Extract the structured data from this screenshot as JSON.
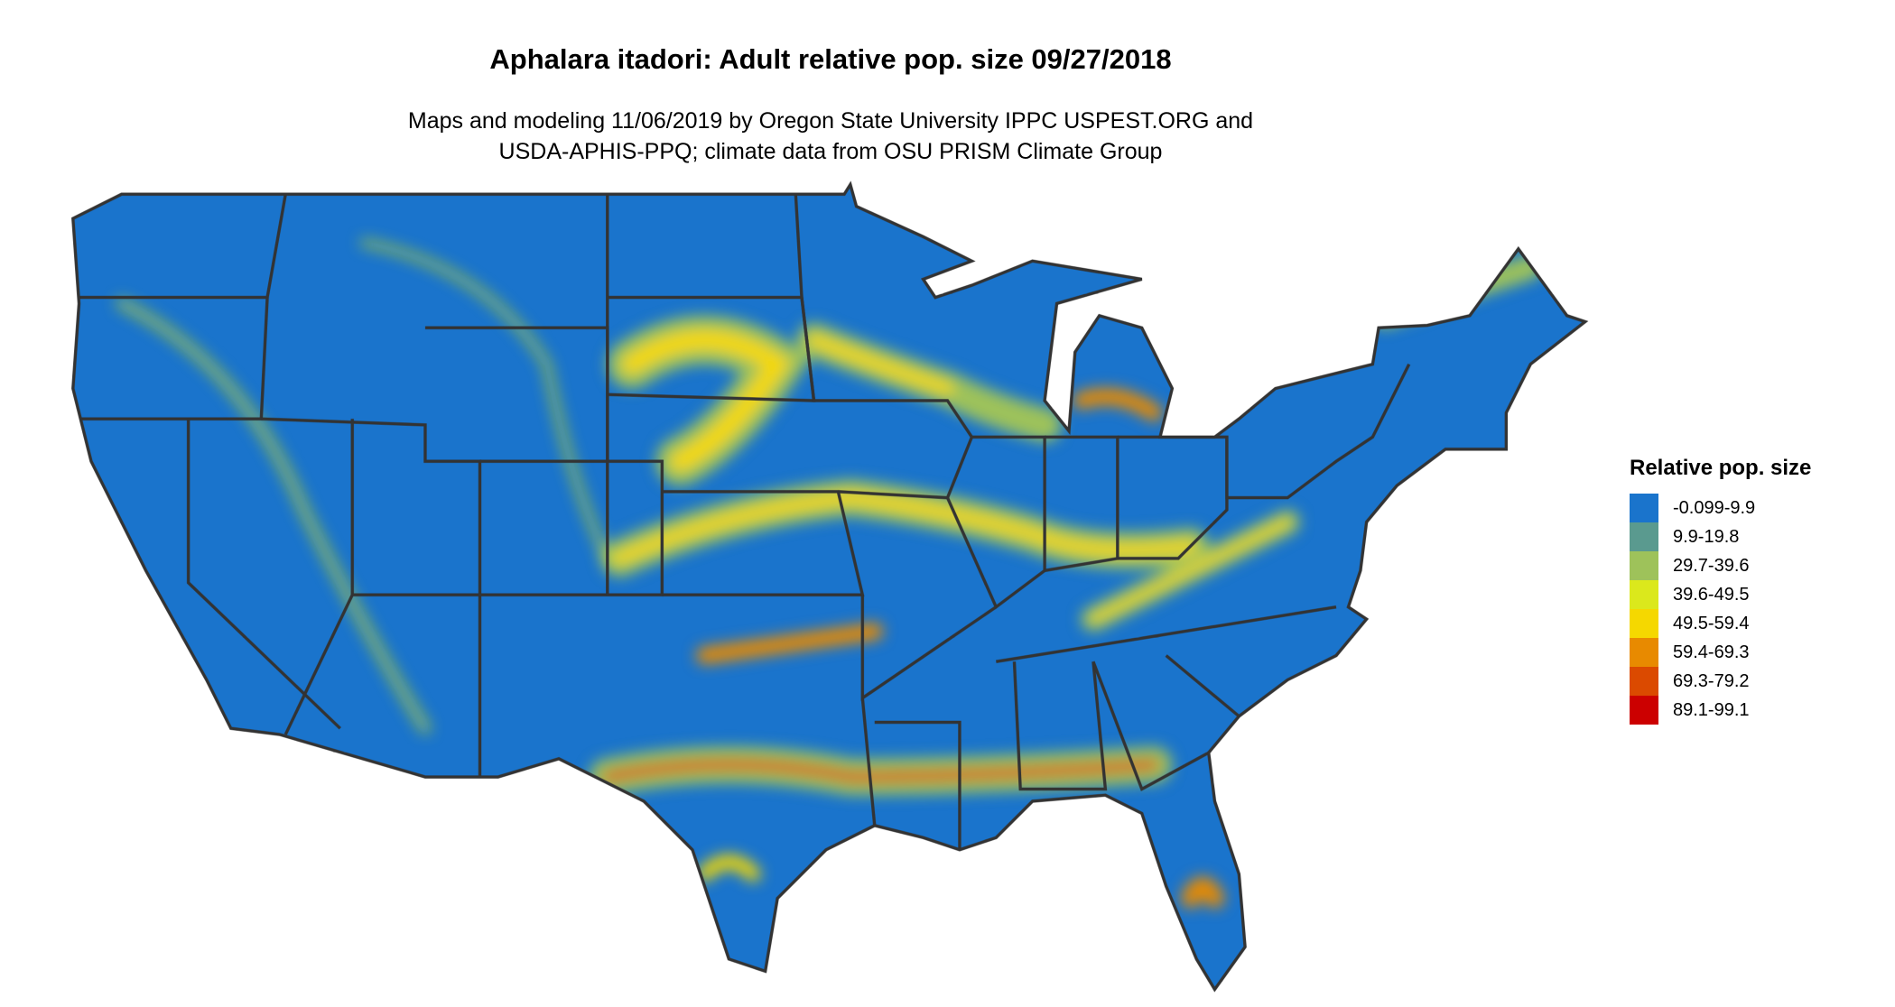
{
  "title": "Aphalara itadori: Adult relative pop. size 09/27/2018",
  "subtitle_line1": "Maps and modeling 11/06/2019 by Oregon State University IPPC USPEST.ORG and",
  "subtitle_line2": "USDA-APHIS-PPQ; climate data from OSU PRISM Climate Group",
  "map": {
    "region": "Contiguous United States",
    "state_borders": true,
    "background_class": "-0.099-9.9"
  },
  "legend": {
    "title": "Relative pop. size",
    "items": [
      {
        "label": "-0.099-9.9",
        "color": "#1a74cc"
      },
      {
        "label": "9.9-19.8",
        "color": "#5a9a8f"
      },
      {
        "label": "29.7-39.6",
        "color": "#9ec25a"
      },
      {
        "label": "39.6-49.5",
        "color": "#dbe81c"
      },
      {
        "label": "49.5-59.4",
        "color": "#f5d800"
      },
      {
        "label": "59.4-69.3",
        "color": "#e88a00"
      },
      {
        "label": "69.3-79.2",
        "color": "#db4a00"
      },
      {
        "label": "89.1-99.1",
        "color": "#cc0000"
      }
    ]
  }
}
